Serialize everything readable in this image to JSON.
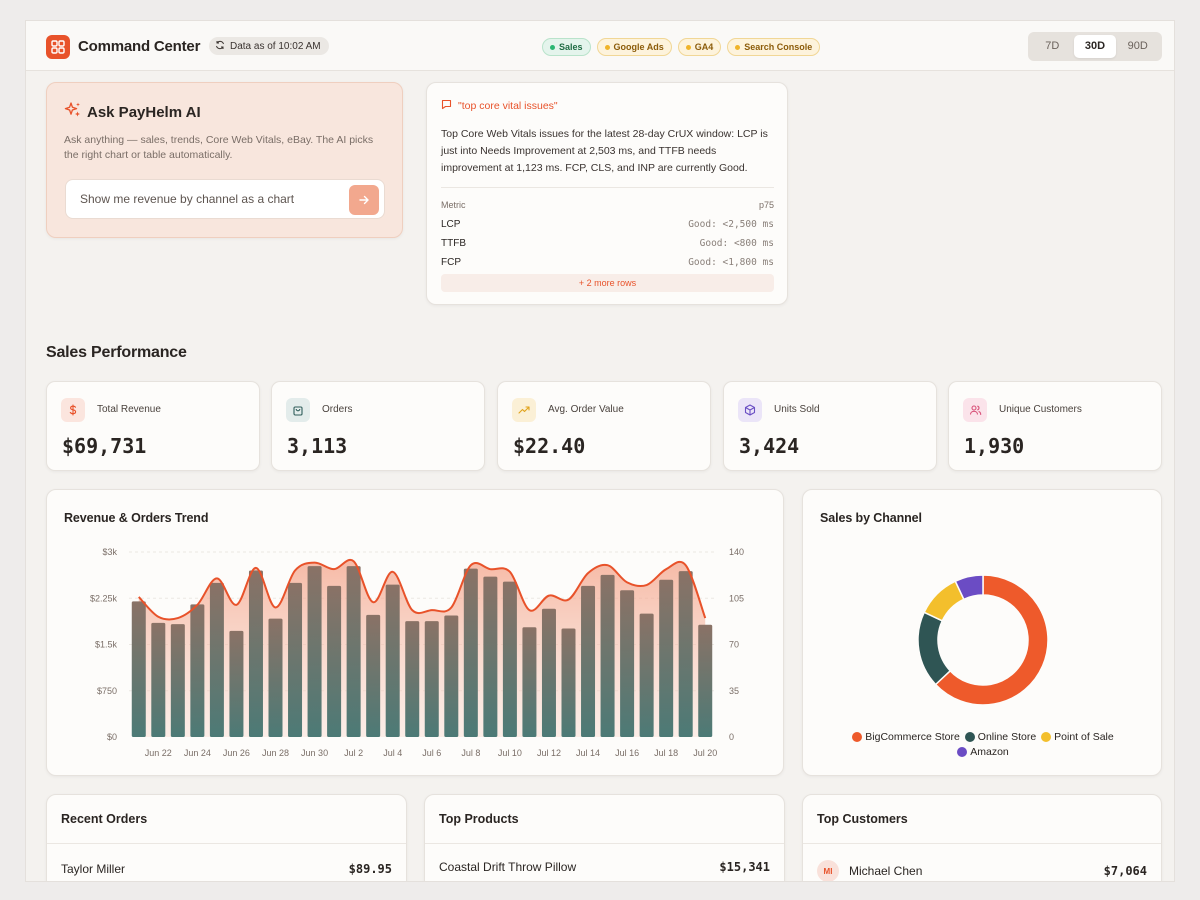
{
  "header": {
    "brand": "Command Center",
    "data_as_of": "Data as of 10:02 AM",
    "sources": [
      {
        "label": "Sales",
        "status": "green"
      },
      {
        "label": "Google Ads",
        "status": "amber"
      },
      {
        "label": "GA4",
        "status": "amber"
      },
      {
        "label": "Search Console",
        "status": "amber"
      }
    ],
    "ranges": [
      "7D",
      "30D",
      "90D"
    ],
    "active_range": "30D"
  },
  "ai": {
    "title": "Ask PayHelm AI",
    "description": "Ask anything — sales, trends, Core Web Vitals, eBay. The AI picks the right chart or table automatically.",
    "input_value": "Show me revenue by channel as a chart"
  },
  "answer": {
    "query": "\"top core vital issues\"",
    "text": "Top Core Web Vitals issues for the latest 28-day CrUX window: LCP is just into Needs Improvement at 2,503 ms, and TTFB needs improvement at 1,123 ms. FCP, CLS, and INP are currently Good.",
    "col_metric": "Metric",
    "col_value": "p75",
    "rows": [
      {
        "metric": "LCP",
        "value": "Good: <2,500 ms"
      },
      {
        "metric": "TTFB",
        "value": "Good: <800 ms"
      },
      {
        "metric": "FCP",
        "value": "Good: <1,800 ms"
      }
    ],
    "more": "+ 2 more rows"
  },
  "section_title": "Sales Performance",
  "kpis": [
    {
      "label": "Total Revenue",
      "value": "$69,731",
      "icon": "dollar-icon",
      "color": "#e8522a",
      "bg": "#fbe5de"
    },
    {
      "label": "Orders",
      "value": "3,113",
      "icon": "shopping-bag-icon",
      "color": "#2f5d5a",
      "bg": "#e3eceb"
    },
    {
      "label": "Avg. Order Value",
      "value": "$22.40",
      "icon": "trending-up-icon",
      "color": "#e0a21a",
      "bg": "#fbf0d6"
    },
    {
      "label": "Units Sold",
      "value": "3,424",
      "icon": "box-icon",
      "color": "#6a4fc4",
      "bg": "#ebe5f8"
    },
    {
      "label": "Unique Customers",
      "value": "1,930",
      "icon": "users-icon",
      "color": "#d9537a",
      "bg": "#fbe3ea"
    }
  ],
  "trend": {
    "title": "Revenue & Orders Trend"
  },
  "channels": {
    "title": "Sales by Channel"
  },
  "recent_orders": {
    "title": "Recent Orders",
    "first": {
      "name": "Taylor Miller",
      "amount": "$89.95"
    }
  },
  "top_products": {
    "title": "Top Products",
    "first": {
      "name": "Coastal Drift Throw Pillow",
      "amount": "$15,341"
    }
  },
  "top_customers": {
    "title": "Top Customers",
    "first": {
      "name": "Michael Chen",
      "initials": "MI",
      "amount": "$7,064"
    }
  },
  "chart_data": [
    {
      "type": "bar",
      "title": "Revenue & Orders Trend",
      "x": [
        "Jun 21",
        "Jun 22",
        "Jun 23",
        "Jun 24",
        "Jun 25",
        "Jun 26",
        "Jun 27",
        "Jun 28",
        "Jun 29",
        "Jun 30",
        "Jul 1",
        "Jul 2",
        "Jul 3",
        "Jul 4",
        "Jul 5",
        "Jul 6",
        "Jul 7",
        "Jul 8",
        "Jul 9",
        "Jul 10",
        "Jul 11",
        "Jul 12",
        "Jul 13",
        "Jul 14",
        "Jul 15",
        "Jul 16",
        "Jul 17",
        "Jul 18",
        "Jul 19",
        "Jul 20"
      ],
      "tick_labels": [
        "Jun 22",
        "Jun 24",
        "Jun 26",
        "Jun 28",
        "Jun 30",
        "Jul 2",
        "Jul 4",
        "Jul 6",
        "Jul 8",
        "Jul 10",
        "Jul 12",
        "Jul 14",
        "Jul 16",
        "Jul 18",
        "Jul 20"
      ],
      "series": [
        {
          "type": "bar",
          "axis": "left",
          "values": [
            2200,
            1850,
            1830,
            2150,
            2500,
            1720,
            2700,
            1920,
            2500,
            2770,
            2450,
            2770,
            1980,
            2470,
            1880,
            1880,
            1970,
            2730,
            2600,
            2520,
            1780,
            2080,
            1760,
            2450,
            2630,
            2380,
            2000,
            2550,
            2690,
            1820
          ]
        },
        {
          "type": "area",
          "axis": "right",
          "values": [
            106,
            91,
            90,
            100,
            120,
            100,
            128,
            98,
            126,
            132,
            127,
            133,
            102,
            125,
            96,
            96,
            98,
            130,
            127,
            125,
            96,
            107,
            104,
            124,
            130,
            117,
            115,
            127,
            130,
            90
          ]
        }
      ],
      "ylim_left": [
        0,
        3000
      ],
      "yticks_left": [
        "$0",
        "$750",
        "$1.5k",
        "$2.25k",
        "$3k"
      ],
      "ylim_right": [
        0,
        140
      ],
      "yticks_right": [
        "0",
        "35",
        "70",
        "105",
        "140"
      ]
    },
    {
      "type": "pie",
      "title": "Sales by Channel",
      "labels": [
        "BigCommerce Store",
        "Online Store",
        "Point of Sale",
        "Amazon"
      ],
      "values": [
        63,
        19,
        11,
        7
      ],
      "colors": [
        "#ee5a2b",
        "#2f5554",
        "#f3bf2c",
        "#6b4cc4"
      ],
      "legend_position": "bottom"
    }
  ]
}
